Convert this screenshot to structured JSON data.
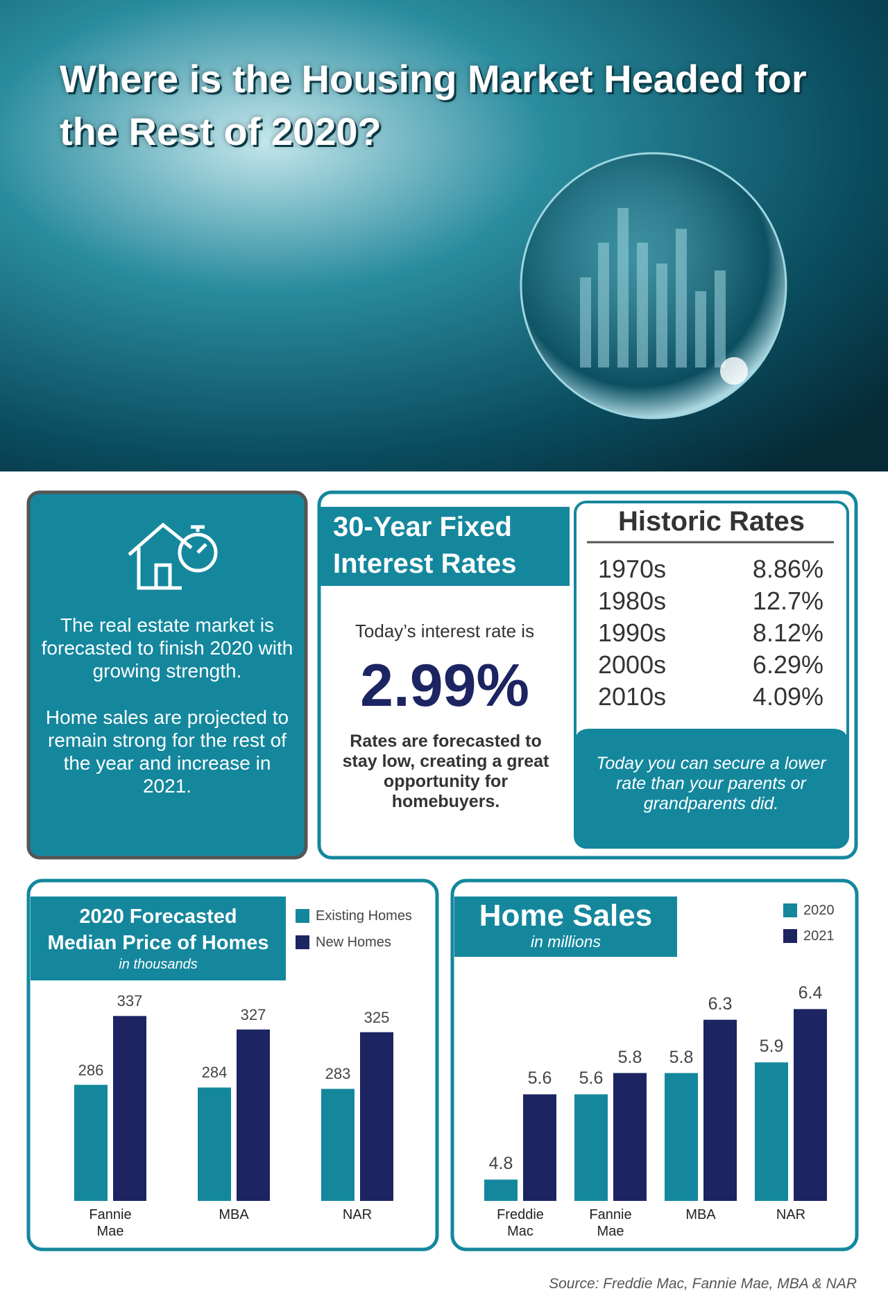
{
  "header": {
    "title": "Where is the Housing Market Headed for the Rest of 2020?"
  },
  "left_panel": {
    "paragraphs": [
      "The real estate market is forecasted to finish 2020 with growing strength.",
      "Home sales are projected to remain strong for the rest of the year and increase in 2021."
    ]
  },
  "rates_panel": {
    "title": "30-Year Fixed Interest Rates",
    "intro": "Today’s interest rate is",
    "rate": "2.99%",
    "note": "Rates are forecasted to stay low, creating a great opportunity for homebuyers."
  },
  "historic": {
    "title": "Historic Rates",
    "rows": [
      [
        "1970s",
        "8.86%"
      ],
      [
        "1980s",
        "12.7%"
      ],
      [
        "1990s",
        "8.12%"
      ],
      [
        "2000s",
        "6.29%"
      ],
      [
        "2010s",
        "4.09%"
      ]
    ],
    "note": "Today you can secure a lower rate than your parents or grandparents did."
  },
  "chart_data": [
    {
      "type": "bar",
      "title": "2020 Forecasted Median Price of Homes",
      "subtitle": "in thousands",
      "categories": [
        "Fannie Mae",
        "MBA",
        "NAR"
      ],
      "series": [
        {
          "name": "Existing Homes",
          "color": "#14879d",
          "values": [
            286,
            284,
            283
          ]
        },
        {
          "name": "New Homes",
          "color": "#1c2462",
          "values": [
            337,
            327,
            325
          ]
        }
      ],
      "ylim": [
        200,
        350
      ]
    },
    {
      "type": "bar",
      "title": "Home Sales",
      "subtitle": "in millions",
      "categories": [
        "Freddie Mac",
        "Fannie Mae",
        "MBA",
        "NAR"
      ],
      "series": [
        {
          "name": "2020",
          "color": "#14879d",
          "values": [
            4.8,
            5.6,
            5.8,
            5.9
          ]
        },
        {
          "name": "2021",
          "color": "#1c2462",
          "values": [
            5.6,
            5.8,
            6.3,
            6.4
          ]
        }
      ],
      "ylim": [
        4.6,
        6.5
      ]
    }
  ],
  "source": "Source: Freddie Mac, Fannie Mae, MBA & NAR"
}
